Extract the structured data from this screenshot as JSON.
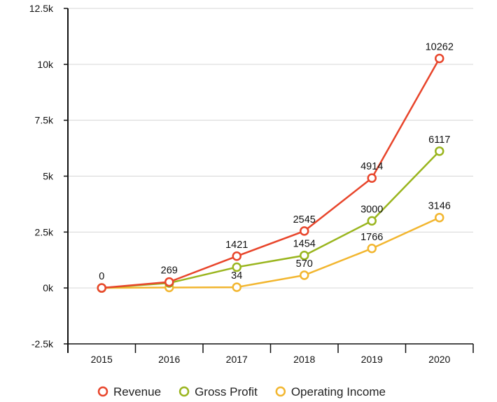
{
  "chart_data": {
    "type": "line",
    "title": "",
    "xlabel": "",
    "ylabel": "",
    "categories": [
      "2015",
      "2016",
      "2017",
      "2018",
      "2019",
      "2020"
    ],
    "ylim": [
      -2500,
      12500
    ],
    "y_ticks": [
      -2500,
      0,
      2500,
      5000,
      7500,
      10000,
      12500
    ],
    "y_tick_labels": [
      "-2.5k",
      "0k",
      "2.5k",
      "5k",
      "7.5k",
      "10k",
      "12.5k"
    ],
    "grid": true,
    "legend_position": "bottom-center",
    "series": [
      {
        "name": "Revenue",
        "color": "#e8452b",
        "values": [
          0,
          269,
          1421,
          2545,
          4914,
          10262
        ],
        "labels": [
          "0",
          "269",
          "1421",
          "2545",
          "4914",
          "10262"
        ]
      },
      {
        "name": "Gross Profit",
        "color": "#9ab51e",
        "values": [
          0,
          220,
          930,
          1454,
          3000,
          6117
        ],
        "labels": [
          "",
          "",
          "",
          "1454",
          "3000",
          "6117"
        ]
      },
      {
        "name": "Operating Income",
        "color": "#f2b62f",
        "values": [
          0,
          20,
          34,
          570,
          1766,
          3146
        ],
        "labels": [
          "",
          "",
          "34",
          "570",
          "1766",
          "3146"
        ]
      }
    ]
  }
}
